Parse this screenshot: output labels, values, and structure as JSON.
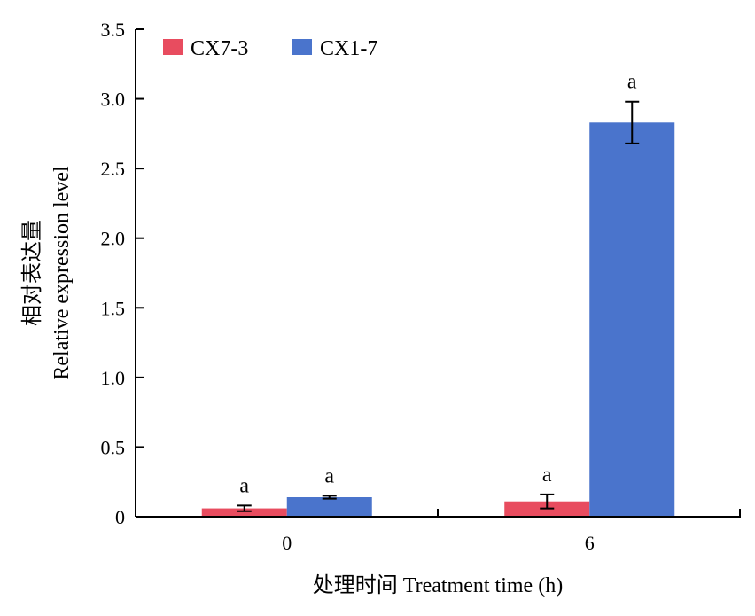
{
  "chart_data": {
    "type": "bar",
    "categories": [
      "0",
      "6"
    ],
    "series": [
      {
        "name": "CX7-3",
        "color": "#e84c5f",
        "values": [
          0.06,
          0.11
        ],
        "errors": [
          0.02,
          0.05
        ],
        "labels": [
          "a",
          "a"
        ]
      },
      {
        "name": "CX1-7",
        "color": "#4a74cc",
        "values": [
          0.14,
          2.83
        ],
        "errors": [
          0.01,
          0.15
        ],
        "labels": [
          "a",
          "a"
        ]
      }
    ],
    "xlabel": "处理时间 Treatment time (h)",
    "ylabel_line1": "相对表达量",
    "ylabel_line2": "Relative expression level",
    "ylim": [
      0,
      3.5
    ],
    "yticks": [
      "0",
      "0.5",
      "1.0",
      "1.5",
      "2.0",
      "2.5",
      "3.0",
      "3.5"
    ],
    "grid": false,
    "legend_position": "top-left"
  }
}
